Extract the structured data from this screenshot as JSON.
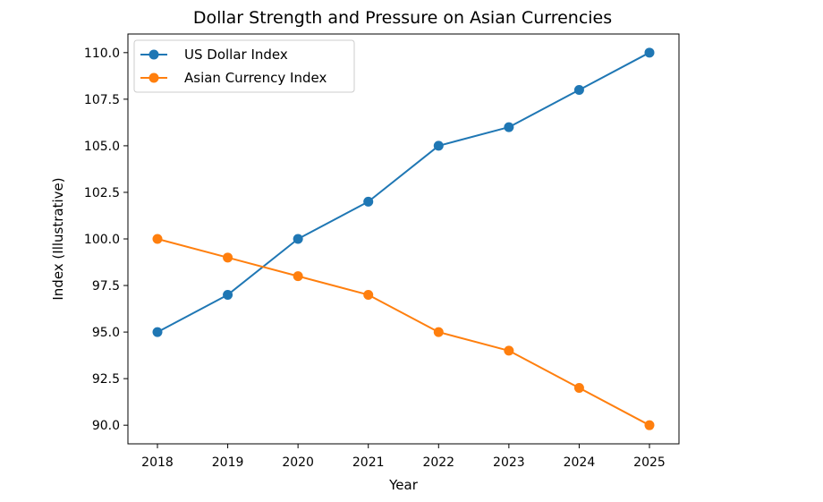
{
  "chart_data": {
    "type": "line",
    "title": "Dollar Strength and Pressure on Asian Currencies",
    "xlabel": "Year",
    "ylabel": "Index (Illustrative)",
    "x": [
      2018,
      2019,
      2020,
      2021,
      2022,
      2023,
      2024,
      2025
    ],
    "x_tick_labels": [
      "2018",
      "2019",
      "2020",
      "2021",
      "2022",
      "2023",
      "2024",
      "2025"
    ],
    "xlim": [
      2017.58,
      2025.42
    ],
    "ylim": [
      89.0,
      111.0
    ],
    "y_ticks": [
      90.0,
      92.5,
      95.0,
      97.5,
      100.0,
      102.5,
      105.0,
      107.5,
      110.0
    ],
    "y_tick_labels": [
      "90.0",
      "92.5",
      "95.0",
      "97.5",
      "100.0",
      "102.5",
      "105.0",
      "107.5",
      "110.0"
    ],
    "grid": false,
    "legend_position": "top-left",
    "series": [
      {
        "name": "US Dollar Index",
        "color": "#1f77b4",
        "marker": "circle",
        "values": [
          95,
          97,
          100,
          102,
          105,
          106,
          108,
          110
        ]
      },
      {
        "name": "Asian Currency Index",
        "color": "#ff7f0e",
        "marker": "circle",
        "values": [
          100,
          99,
          98,
          97,
          95,
          94,
          92,
          90
        ]
      }
    ]
  }
}
